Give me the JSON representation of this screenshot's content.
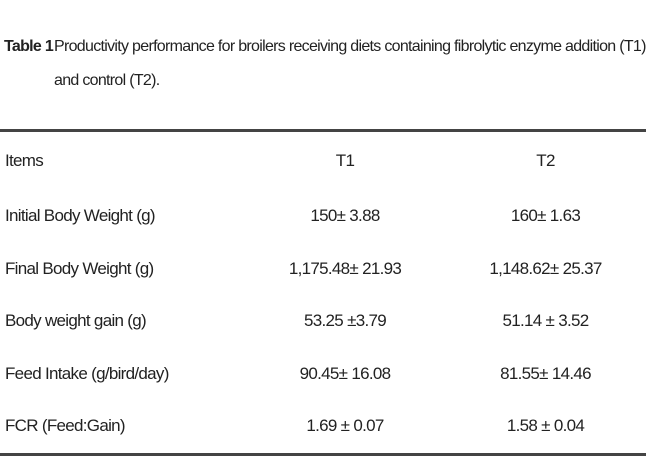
{
  "caption": {
    "label": "Table 1",
    "text": "Productivity performance for broilers receiving diets containing fibrolytic enzyme addition (T1) and control (T2)."
  },
  "table": {
    "header": [
      "Items",
      "T1",
      "T2"
    ],
    "rows": [
      [
        "Initial Body Weight (g)",
        "150± 3.88",
        "160± 1.63"
      ],
      [
        "Final Body Weight (g)",
        "1,175.48± 21.93",
        "1,148.62± 25.37"
      ],
      [
        "Body weight gain (g)",
        "53.25 ±3.79",
        "51.14 ± 3.52"
      ],
      [
        "Feed Intake (g/bird/day)",
        "90.45± 16.08",
        "81.55± 14.46"
      ],
      [
        "FCR (Feed:Gain)",
        "1.69 ± 0.07",
        "1.58 ± 0.04"
      ]
    ]
  }
}
